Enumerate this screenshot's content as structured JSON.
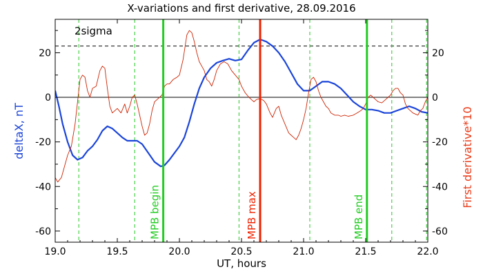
{
  "chart_data": {
    "type": "line",
    "title": "X-variations and first derivative, 28.09.2016",
    "xlabel": "UT, hours",
    "ylabel_left": "deltaX, nT",
    "ylabel_right": "First derivative*10",
    "xlim": [
      19.0,
      22.0
    ],
    "ylim": [
      -65,
      35
    ],
    "xticks": [
      "19.0",
      "19.5",
      "20.0",
      "20.5",
      "21.0",
      "21.5",
      "22.0"
    ],
    "xtick_values": [
      19.0,
      19.5,
      20.0,
      20.5,
      21.0,
      21.5,
      22.0
    ],
    "yticks": [
      "-60",
      "-40",
      "-20",
      "0",
      "20"
    ],
    "ytick_values": [
      -60,
      -40,
      -20,
      0,
      20
    ],
    "threshold": {
      "label": "2sigma",
      "value": 23,
      "color": "#000000"
    },
    "dashed_markers": {
      "color": "#22c522",
      "x": [
        19.19,
        19.64,
        20.48,
        21.05,
        21.71,
        21.99
      ]
    },
    "markers": [
      {
        "label": "MPB begin",
        "x": 19.87,
        "color": "#22cc22"
      },
      {
        "label": "MPB max",
        "x": 20.65,
        "color": "#ee2200"
      },
      {
        "label": "MPB end",
        "x": 21.51,
        "color": "#22cc22"
      }
    ],
    "series": [
      {
        "color": "#1a44d8",
        "axis": "left",
        "x": [
          19.0,
          19.03,
          19.06,
          19.1,
          19.14,
          19.18,
          19.22,
          19.26,
          19.3,
          19.34,
          19.38,
          19.42,
          19.46,
          19.5,
          19.54,
          19.58,
          19.62,
          19.66,
          19.7,
          19.75,
          19.8,
          19.85,
          19.88,
          19.92,
          19.96,
          20.0,
          20.04,
          20.08,
          20.12,
          20.16,
          20.2,
          20.25,
          20.3,
          20.35,
          20.4,
          20.45,
          20.5,
          20.55,
          20.6,
          20.65,
          20.7,
          20.75,
          20.8,
          20.85,
          20.9,
          20.95,
          21.0,
          21.05,
          21.1,
          21.15,
          21.2,
          21.25,
          21.3,
          21.35,
          21.4,
          21.45,
          21.5,
          21.55,
          21.6,
          21.65,
          21.7,
          21.75,
          21.8,
          21.85,
          21.9,
          21.95,
          22.0
        ],
        "values": [
          3,
          -4,
          -12,
          -20,
          -26,
          -28,
          -27,
          -24,
          -22,
          -19,
          -15,
          -13,
          -14,
          -16,
          -18,
          -19.5,
          -19.5,
          -19.5,
          -21,
          -25,
          -29,
          -31,
          -30.5,
          -28,
          -25,
          -22,
          -18,
          -11,
          -3,
          4,
          9,
          13,
          15.5,
          16.5,
          17.3,
          16.5,
          17,
          21,
          24.5,
          26,
          25,
          23,
          20,
          16,
          11,
          6,
          3,
          3,
          5,
          7,
          7,
          6,
          4,
          1,
          -2,
          -4,
          -5.5,
          -5.5,
          -6,
          -7,
          -7,
          -6,
          -5,
          -4,
          -5,
          -6.5,
          -7
        ]
      },
      {
        "color": "#cc2200",
        "axis": "right",
        "x": [
          19.0,
          19.02,
          19.05,
          19.08,
          19.1,
          19.13,
          19.16,
          19.18,
          19.2,
          19.22,
          19.24,
          19.26,
          19.28,
          19.3,
          19.33,
          19.36,
          19.38,
          19.4,
          19.42,
          19.44,
          19.46,
          19.48,
          19.5,
          19.53,
          19.56,
          19.58,
          19.6,
          19.62,
          19.64,
          19.66,
          19.68,
          19.7,
          19.72,
          19.74,
          19.76,
          19.78,
          19.8,
          19.82,
          19.84,
          19.86,
          19.88,
          19.9,
          19.92,
          19.95,
          19.98,
          20.0,
          20.03,
          20.06,
          20.08,
          20.1,
          20.12,
          20.14,
          20.16,
          20.18,
          20.2,
          20.22,
          20.24,
          20.26,
          20.28,
          20.3,
          20.33,
          20.36,
          20.39,
          20.42,
          20.45,
          20.48,
          20.5,
          20.53,
          20.56,
          20.58,
          20.6,
          20.62,
          20.65,
          20.68,
          20.7,
          20.73,
          20.75,
          20.78,
          20.8,
          20.82,
          20.85,
          20.88,
          20.9,
          20.92,
          20.94,
          20.96,
          20.98,
          21.0,
          21.02,
          21.04,
          21.06,
          21.08,
          21.1,
          21.12,
          21.14,
          21.16,
          21.18,
          21.2,
          21.22,
          21.25,
          21.28,
          21.3,
          21.33,
          21.36,
          21.4,
          21.43,
          21.46,
          21.48,
          21.5,
          21.52,
          21.54,
          21.56,
          21.58,
          21.6,
          21.63,
          21.66,
          21.68,
          21.7,
          21.72,
          21.74,
          21.76,
          21.78,
          21.8,
          21.82,
          21.84,
          21.86,
          21.88,
          21.9,
          21.92,
          21.94,
          21.96,
          21.98,
          22.0
        ],
        "values": [
          -36,
          -38,
          -36,
          -30,
          -26,
          -22,
          -12,
          -2,
          8,
          10,
          9,
          3,
          0,
          4,
          5,
          12,
          14,
          13,
          4,
          -4,
          -7,
          -6,
          -5,
          -7,
          -3,
          -7,
          -4,
          0,
          1,
          -3,
          -8,
          -13,
          -17,
          -16,
          -12,
          -6,
          -2,
          -1,
          0,
          1,
          5,
          6,
          6,
          8,
          9,
          10,
          17,
          28,
          30,
          29,
          25,
          20,
          16,
          14,
          12,
          8,
          7,
          5,
          8,
          12,
          15,
          16,
          15,
          12,
          10,
          8,
          5,
          2,
          0,
          -1,
          -2,
          -1,
          -0.5,
          -1.5,
          -3,
          -7,
          -9,
          -5,
          -4,
          -8,
          -12,
          -16,
          -17,
          -18,
          -19,
          -17,
          -14,
          -10,
          -5,
          2,
          8,
          9,
          7,
          3,
          0,
          -2,
          -4,
          -5,
          -7,
          -8,
          -8,
          -8.5,
          -8,
          -8.5,
          -8,
          -7,
          -6,
          -5,
          -3,
          0,
          1,
          0,
          -1,
          -2,
          -2.5,
          -1,
          0,
          1,
          3,
          4,
          4,
          2,
          1,
          -3,
          -5,
          -6,
          -7,
          -7.5,
          -8,
          -6,
          -5,
          -2,
          0
        ]
      }
    ]
  }
}
